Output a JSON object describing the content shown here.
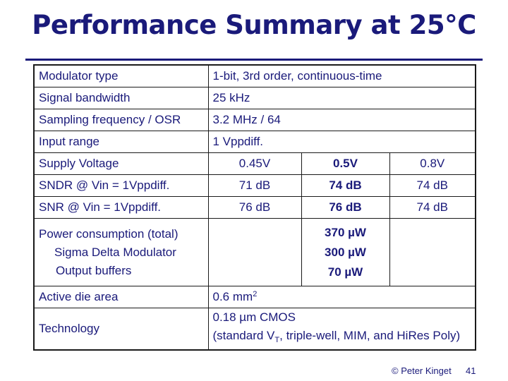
{
  "title": "Performance Summary at 25°C",
  "rows": {
    "modulator_type": {
      "label": "Modulator type",
      "value": "1-bit, 3rd order, continuous-time"
    },
    "signal_bandwidth": {
      "label": "Signal bandwidth",
      "value": "25 kHz"
    },
    "sampling_frequency": {
      "label": "Sampling frequency / OSR",
      "value": "3.2 MHz / 64"
    },
    "input_range": {
      "label": "Input range",
      "value": "1 Vppdiff."
    },
    "supply_voltage": {
      "label": "Supply Voltage",
      "values": [
        "0.45V",
        "0.5V",
        "0.8V"
      ]
    },
    "sndr": {
      "label": "SNDR @ Vin = 1Vppdiff.",
      "values": [
        "71 dB",
        "74 dB",
        "74 dB"
      ]
    },
    "snr": {
      "label": "SNR @ Vin = 1Vppdiff.",
      "values": [
        "76 dB",
        "76 dB",
        "74 dB"
      ]
    },
    "power": {
      "label": "Power consumption (total)",
      "sub_labels": [
        "Sigma Delta Modulator",
        "Output buffers"
      ],
      "values": [
        "370 µW",
        "300 µW",
        "70 µW"
      ]
    },
    "die_area": {
      "label": "Active die area",
      "value": "0.6 mm",
      "value_sup": "2"
    },
    "technology": {
      "label": "Technology",
      "value_line1": "0.18 µm CMOS",
      "value_line2_pre": "(standard V",
      "value_line2_sub": "T",
      "value_line2_post": ", triple-well, MIM, and HiRes Poly)"
    }
  },
  "footer": {
    "copyright": "© Peter Kinget",
    "page_number": "41"
  }
}
